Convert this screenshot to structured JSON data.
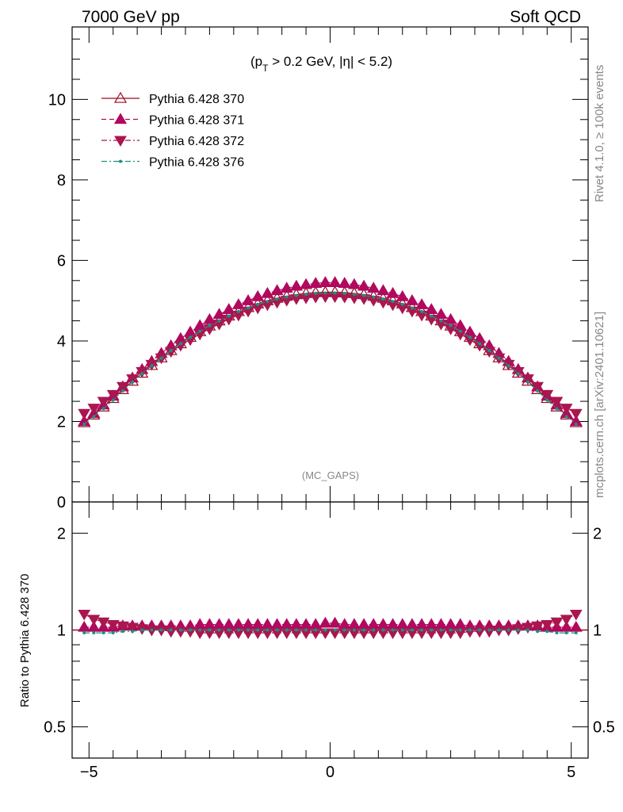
{
  "header": {
    "left_title": "7000 GeV pp",
    "right_title": "Soft QCD"
  },
  "side_labels": {
    "rivet": "Rivet 4.1.0, ≥ 100k events",
    "site": "mcplots.cern.ch [arXiv:2401.10621]"
  },
  "cuts": {
    "prefix": "(p",
    "sub": "T",
    "rest": " > 0.2 GeV, |η| < 5.2)"
  },
  "analysis_tag": "(MC_GAPS)",
  "colors": {
    "s370": "#9b0b1d",
    "s371": "#b0095e",
    "s372": "#aa1650",
    "s376": "#1d9080",
    "grey": "#888888"
  },
  "chart_data": [
    {
      "type": "line",
      "panel": "main",
      "x": [
        -5.1,
        -4.9,
        -4.7,
        -4.5,
        -4.3,
        -4.1,
        -3.9,
        -3.7,
        -3.5,
        -3.3,
        -3.1,
        -2.9,
        -2.7,
        -2.5,
        -2.3,
        -2.1,
        -1.9,
        -1.7,
        -1.5,
        -1.3,
        -1.1,
        -0.9,
        -0.7,
        -0.5,
        -0.3,
        -0.1,
        0.1,
        0.3,
        0.5,
        0.7,
        0.9,
        1.1,
        1.3,
        1.5,
        1.7,
        1.9,
        2.1,
        2.3,
        2.5,
        2.7,
        2.9,
        3.1,
        3.3,
        3.5,
        3.7,
        3.9,
        4.1,
        4.3,
        4.5,
        4.7,
        4.9,
        5.1
      ],
      "series": [
        {
          "name": "Pythia 6.428 370",
          "marker": "open-triangle-up",
          "style": "solid",
          "values": [
            1.97,
            2.16,
            2.36,
            2.57,
            2.79,
            3.0,
            3.2,
            3.39,
            3.58,
            3.76,
            3.93,
            4.09,
            4.23,
            4.37,
            4.5,
            4.62,
            4.73,
            4.83,
            4.92,
            5.0,
            5.06,
            5.11,
            5.15,
            5.18,
            5.2,
            5.21,
            5.21,
            5.2,
            5.18,
            5.15,
            5.11,
            5.06,
            5.0,
            4.92,
            4.83,
            4.73,
            4.62,
            4.5,
            4.37,
            4.23,
            4.09,
            3.93,
            3.76,
            3.58,
            3.39,
            3.2,
            3.0,
            2.79,
            2.57,
            2.36,
            2.16,
            1.97
          ]
        },
        {
          "name": "Pythia 6.428 371",
          "marker": "filled-triangle-up",
          "style": "dashed",
          "values": [
            2.0,
            2.2,
            2.41,
            2.63,
            2.86,
            3.08,
            3.29,
            3.49,
            3.69,
            3.88,
            4.06,
            4.22,
            4.38,
            4.53,
            4.66,
            4.78,
            4.9,
            5.0,
            5.1,
            5.18,
            5.25,
            5.31,
            5.36,
            5.4,
            5.43,
            5.45,
            5.45,
            5.43,
            5.4,
            5.36,
            5.31,
            5.25,
            5.18,
            5.1,
            5.0,
            4.9,
            4.78,
            4.66,
            4.53,
            4.38,
            4.22,
            4.06,
            3.88,
            3.69,
            3.49,
            3.29,
            3.08,
            2.86,
            2.63,
            2.41,
            2.2,
            2.0
          ]
        },
        {
          "name": "Pythia 6.428 372",
          "marker": "filled-triangle-down",
          "style": "dashdot",
          "values": [
            2.2,
            2.33,
            2.5,
            2.67,
            2.87,
            3.06,
            3.24,
            3.42,
            3.58,
            3.74,
            3.89,
            4.03,
            4.17,
            4.3,
            4.42,
            4.54,
            4.64,
            4.74,
            4.82,
            4.9,
            4.96,
            5.01,
            5.05,
            5.07,
            5.09,
            5.1,
            5.1,
            5.09,
            5.07,
            5.05,
            5.01,
            4.96,
            4.9,
            4.82,
            4.74,
            4.64,
            4.54,
            4.42,
            4.3,
            4.17,
            4.03,
            3.89,
            3.74,
            3.58,
            3.42,
            3.24,
            3.06,
            2.87,
            2.67,
            2.5,
            2.33,
            2.2
          ]
        },
        {
          "name": "Pythia 6.428 376",
          "marker": "small-dot",
          "style": "dashdot",
          "values": [
            1.93,
            2.12,
            2.32,
            2.53,
            2.76,
            2.98,
            3.19,
            3.38,
            3.57,
            3.76,
            3.93,
            4.09,
            4.24,
            4.38,
            4.5,
            4.62,
            4.73,
            4.82,
            4.91,
            4.98,
            5.04,
            5.09,
            5.13,
            5.16,
            5.18,
            5.19,
            5.19,
            5.18,
            5.16,
            5.13,
            5.09,
            5.04,
            4.98,
            4.91,
            4.82,
            4.73,
            4.62,
            4.5,
            4.38,
            4.24,
            4.09,
            3.93,
            3.76,
            3.57,
            3.38,
            3.19,
            2.98,
            2.76,
            2.53,
            2.32,
            2.12,
            1.93
          ]
        }
      ],
      "xlim": [
        -5.35,
        5.35
      ],
      "ylim": [
        0,
        11.8
      ],
      "yticks": [
        0,
        2,
        4,
        6,
        8,
        10
      ],
      "xlabel": "",
      "ylabel": "",
      "legend": "top-left"
    },
    {
      "type": "line",
      "panel": "ratio",
      "ylabel": "Ratio to Pythia 6.428 370",
      "scale": "log",
      "ylim": [
        0.4,
        2.5
      ],
      "yticks": [
        0.5,
        1,
        2
      ],
      "xticks": [
        -5,
        0,
        5
      ],
      "reference": 1.0,
      "series": [
        {
          "name": "Pythia 6.428 371",
          "values": [
            1.02,
            1.02,
            1.02,
            1.02,
            1.03,
            1.03,
            1.03,
            1.03,
            1.03,
            1.03,
            1.03,
            1.03,
            1.04,
            1.04,
            1.04,
            1.04,
            1.04,
            1.04,
            1.04,
            1.04,
            1.04,
            1.04,
            1.04,
            1.04,
            1.04,
            1.05,
            1.05,
            1.04,
            1.04,
            1.04,
            1.04,
            1.04,
            1.04,
            1.04,
            1.04,
            1.04,
            1.04,
            1.04,
            1.04,
            1.04,
            1.03,
            1.03,
            1.03,
            1.03,
            1.03,
            1.03,
            1.03,
            1.03,
            1.02,
            1.02,
            1.02,
            1.02
          ]
        },
        {
          "name": "Pythia 6.428 372",
          "values": [
            1.12,
            1.08,
            1.06,
            1.04,
            1.03,
            1.02,
            1.01,
            1.0,
            1.0,
            0.99,
            0.99,
            0.99,
            0.98,
            0.98,
            0.98,
            0.98,
            0.98,
            0.98,
            0.98,
            0.98,
            0.98,
            0.98,
            0.98,
            0.98,
            0.98,
            0.98,
            0.98,
            0.98,
            0.98,
            0.98,
            0.98,
            0.98,
            0.98,
            0.98,
            0.98,
            0.98,
            0.98,
            0.98,
            0.98,
            0.98,
            0.99,
            0.99,
            0.99,
            1.0,
            1.0,
            1.01,
            1.02,
            1.03,
            1.04,
            1.06,
            1.08,
            1.12
          ]
        },
        {
          "name": "Pythia 6.428 376",
          "values": [
            0.98,
            0.98,
            0.98,
            0.98,
            0.99,
            0.99,
            1.0,
            1.0,
            1.0,
            1.0,
            1.0,
            1.0,
            1.0,
            1.0,
            1.0,
            1.0,
            1.0,
            1.0,
            1.0,
            1.0,
            1.0,
            1.0,
            1.0,
            1.0,
            1.0,
            1.0,
            1.0,
            1.0,
            1.0,
            1.0,
            1.0,
            1.0,
            1.0,
            1.0,
            1.0,
            1.0,
            1.0,
            1.0,
            1.0,
            1.0,
            1.0,
            1.0,
            1.0,
            1.0,
            1.0,
            1.0,
            1.0,
            0.99,
            0.99,
            0.98,
            0.98,
            0.98
          ]
        }
      ]
    }
  ]
}
